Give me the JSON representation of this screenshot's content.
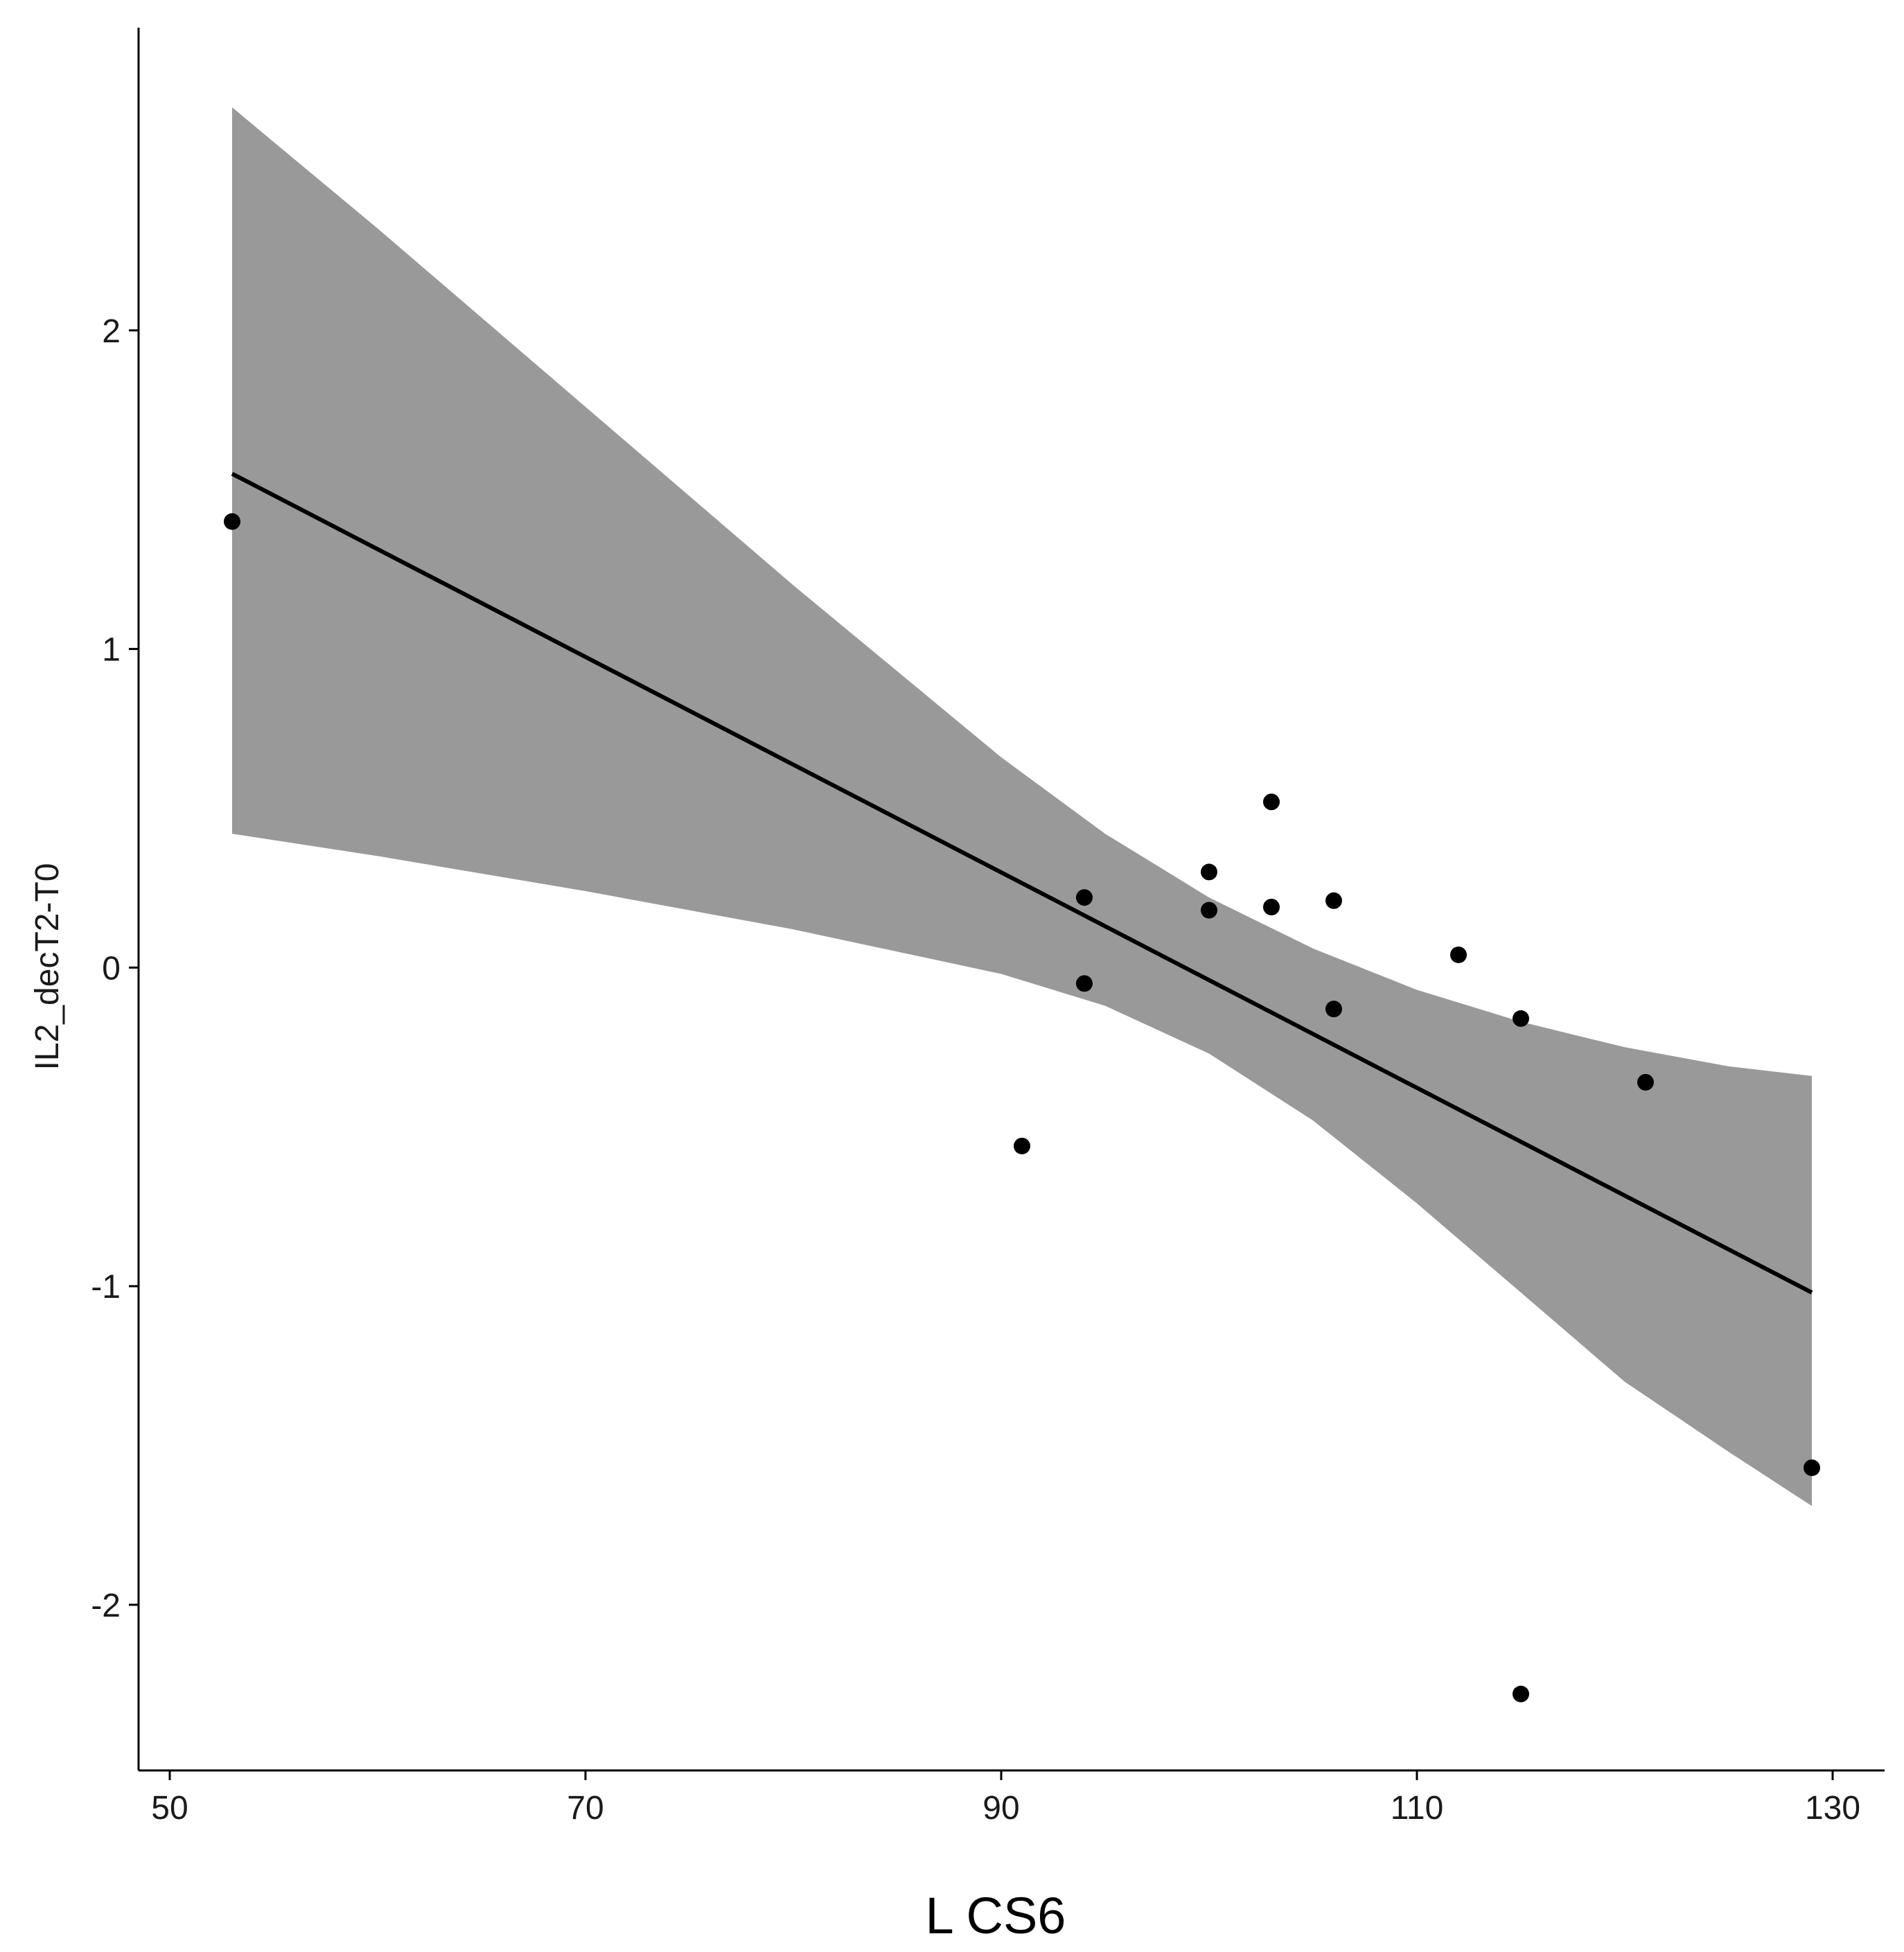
{
  "chart_data": {
    "type": "scatter",
    "title": "",
    "xlabel": "L CS6",
    "ylabel": "IL2_decT2-T0",
    "xlim": [
      48.5,
      132.5
    ],
    "ylim": [
      -2.52,
      2.95
    ],
    "x_ticks": [
      50,
      70,
      90,
      110,
      130
    ],
    "y_ticks": [
      -2,
      -1,
      0,
      1,
      2
    ],
    "points": [
      {
        "x": 53,
        "y": 1.4
      },
      {
        "x": 91,
        "y": -0.56
      },
      {
        "x": 94,
        "y": 0.22
      },
      {
        "x": 94,
        "y": -0.05
      },
      {
        "x": 100,
        "y": 0.3
      },
      {
        "x": 100,
        "y": 0.18
      },
      {
        "x": 103,
        "y": 0.52
      },
      {
        "x": 103,
        "y": 0.19
      },
      {
        "x": 106,
        "y": 0.21
      },
      {
        "x": 106,
        "y": -0.13
      },
      {
        "x": 112,
        "y": 0.04
      },
      {
        "x": 115,
        "y": -0.16
      },
      {
        "x": 115,
        "y": -2.28
      },
      {
        "x": 121,
        "y": -0.36
      },
      {
        "x": 129,
        "y": -1.57
      }
    ],
    "fit_line": {
      "x": [
        53,
        129
      ],
      "y": [
        1.55,
        -1.02
      ]
    },
    "confidence_band": {
      "x": [
        53,
        60,
        70,
        80,
        90,
        95,
        100,
        105,
        110,
        115,
        120,
        125,
        129
      ],
      "upper": [
        2.7,
        2.32,
        1.76,
        1.2,
        0.66,
        0.42,
        0.22,
        0.06,
        -0.07,
        -0.17,
        -0.25,
        -0.31,
        -0.34
      ],
      "lower": [
        0.42,
        0.35,
        0.24,
        0.12,
        -0.02,
        -0.12,
        -0.27,
        -0.48,
        -0.74,
        -1.02,
        -1.3,
        -1.52,
        -1.69
      ]
    },
    "colors": {
      "band": "#999999",
      "line": "#000000",
      "points": "#000000"
    },
    "grid": false,
    "legend": "none"
  }
}
